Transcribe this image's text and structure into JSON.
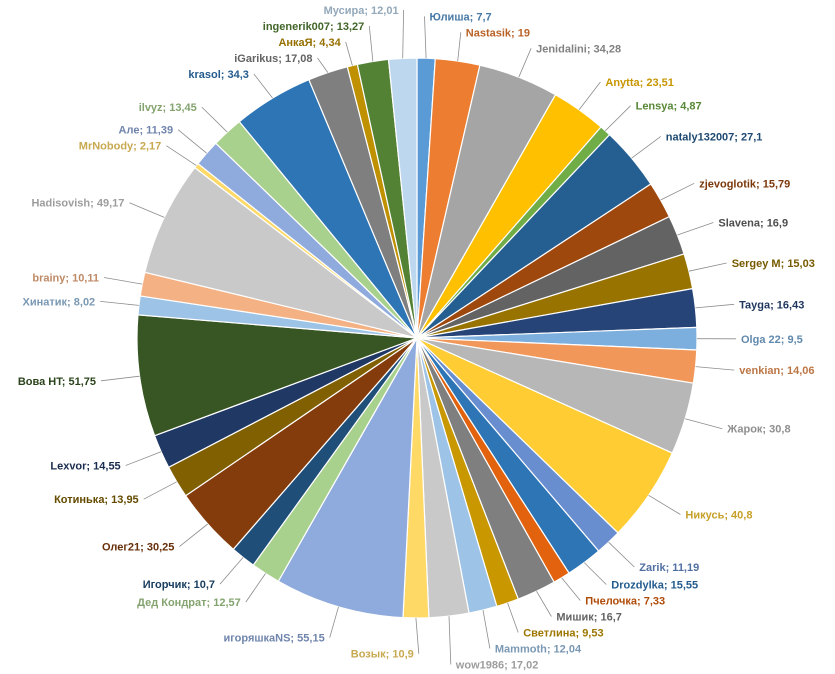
{
  "chart_data": {
    "type": "pie",
    "title": "",
    "start": "12 o'clock, clockwise",
    "legend": "none (data labels outside with leader lines)",
    "slices": [
      {
        "name": "Юлиша",
        "value": 7.7,
        "label": "Юлиша; 7,7",
        "color": "#5b9bd5"
      },
      {
        "name": "Nastasik",
        "value": 19,
        "label": "Nastasik; 19",
        "color": "#ed7d31"
      },
      {
        "name": "Jenidalini",
        "value": 34.28,
        "label": "Jenidalini; 34,28",
        "color": "#a5a5a5"
      },
      {
        "name": "Anytta",
        "value": 23.51,
        "label": "Anytta; 23,51",
        "color": "#ffc000"
      },
      {
        "name": "Lensya",
        "value": 4.87,
        "label": "Lensya; 4,87",
        "color": "#70ad47"
      },
      {
        "name": "nataly132007",
        "value": 27.1,
        "label": "nataly132007; 27,1",
        "color": "#255e91"
      },
      {
        "name": "zjevoglotik",
        "value": 15.79,
        "label": "zjevoglotik; 15,79",
        "color": "#9e480e"
      },
      {
        "name": "Slavena",
        "value": 16.9,
        "label": "Slavena; 16,9",
        "color": "#636363"
      },
      {
        "name": "Sergey M",
        "value": 15.03,
        "label": "Sergey M; 15,03",
        "color": "#997300"
      },
      {
        "name": "Tayga",
        "value": 16.43,
        "label": "Tayga; 16,43",
        "color": "#264478"
      },
      {
        "name": "Olga 22",
        "value": 9.5,
        "label": "Olga 22; 9,5",
        "color": "#7cafdd"
      },
      {
        "name": "venkian",
        "value": 14.06,
        "label": "venkian; 14,06",
        "color": "#f1975a"
      },
      {
        "name": "Жарок",
        "value": 30.8,
        "label": "Жарок; 30,8",
        "color": "#b7b7b7"
      },
      {
        "name": "Никусь",
        "value": 40.8,
        "label": "Никусь; 40,8",
        "color": "#ffcd33"
      },
      {
        "name": "Zarik",
        "value": 11.19,
        "label": "Zarik; 11,19",
        "color": "#698ed0"
      },
      {
        "name": "Drozdylka",
        "value": 15.55,
        "label": "Drozdylka; 15,55",
        "color": "#2e75b6"
      },
      {
        "name": "Пчелочка",
        "value": 7.33,
        "label": "Пчелочка; 7,33",
        "color": "#e2620d"
      },
      {
        "name": "Мишик",
        "value": 16.7,
        "label": "Мишик; 16,7",
        "color": "#7f7f7f"
      },
      {
        "name": "Светлина",
        "value": 9.53,
        "label": "Светлина; 9,53",
        "color": "#c99700"
      },
      {
        "name": "Mammoth",
        "value": 12.04,
        "label": "Mammoth; 12,04",
        "color": "#9dc3e6"
      },
      {
        "name": "wow1986",
        "value": 17.02,
        "label": "wow1986; 17,02",
        "color": "#c9c9c9"
      },
      {
        "name": "Возык",
        "value": 10.9,
        "label": "Возык; 10,9",
        "color": "#ffd966"
      },
      {
        "name": "игоряшкаNS",
        "value": 55.15,
        "label": "игоряшкаNS; 55,15",
        "color": "#8faadc"
      },
      {
        "name": "Дед Кондрат",
        "value": 12.57,
        "label": "Дед Кондрат; 12,57",
        "color": "#a9d18e"
      },
      {
        "name": "Игорчик",
        "value": 10.7,
        "label": "Игорчик; 10,7",
        "color": "#1f4e79"
      },
      {
        "name": "Олег21",
        "value": 30.25,
        "label": "Олег21; 30,25",
        "color": "#843c0c"
      },
      {
        "name": "Котинька",
        "value": 13.95,
        "label": "Котинька; 13,95",
        "color": "#806000"
      },
      {
        "name": "Lexvor",
        "value": 14.55,
        "label": "Lexvor; 14,55",
        "color": "#203864"
      },
      {
        "name": "Вова HT",
        "value": 51.75,
        "label": "Вова HT; 51,75",
        "color": "#375623"
      },
      {
        "name": "Хинатик",
        "value": 8.02,
        "label": "Хинатик; 8,02",
        "color": "#9dc3e6"
      },
      {
        "name": "brainy",
        "value": 10.11,
        "label": "brainy; 10,11",
        "color": "#f4b183"
      },
      {
        "name": "Hadisovish",
        "value": 49.17,
        "label": "Hadisovish; 49,17",
        "color": "#c9c9c9"
      },
      {
        "name": "MrNobody",
        "value": 2.17,
        "label": "MrNobody; 2,17",
        "color": "#ffd966"
      },
      {
        "name": "Але",
        "value": 11.39,
        "label": "Але; 11,39",
        "color": "#8faadc"
      },
      {
        "name": "ilvyz",
        "value": 13.45,
        "label": "ilvyz; 13,45",
        "color": "#a9d18e"
      },
      {
        "name": "krasol",
        "value": 34.3,
        "label": "krasol; 34,3",
        "color": "#2e75b6"
      },
      {
        "name": "iGarikus",
        "value": 17.08,
        "label": "iGarikus; 17,08",
        "color": "#7f7f7f"
      },
      {
        "name": "АнкаЯ",
        "value": 4.34,
        "label": "АнкаЯ; 4,34",
        "color": "#bf9000"
      },
      {
        "name": "ingenerik007",
        "value": 13.27,
        "label": "ingenerik007; 13,27",
        "color": "#548235"
      },
      {
        "name": "Мусира",
        "value": 12.01,
        "label": "Мусира; 12,01",
        "color": "#bdd7ee"
      }
    ]
  }
}
